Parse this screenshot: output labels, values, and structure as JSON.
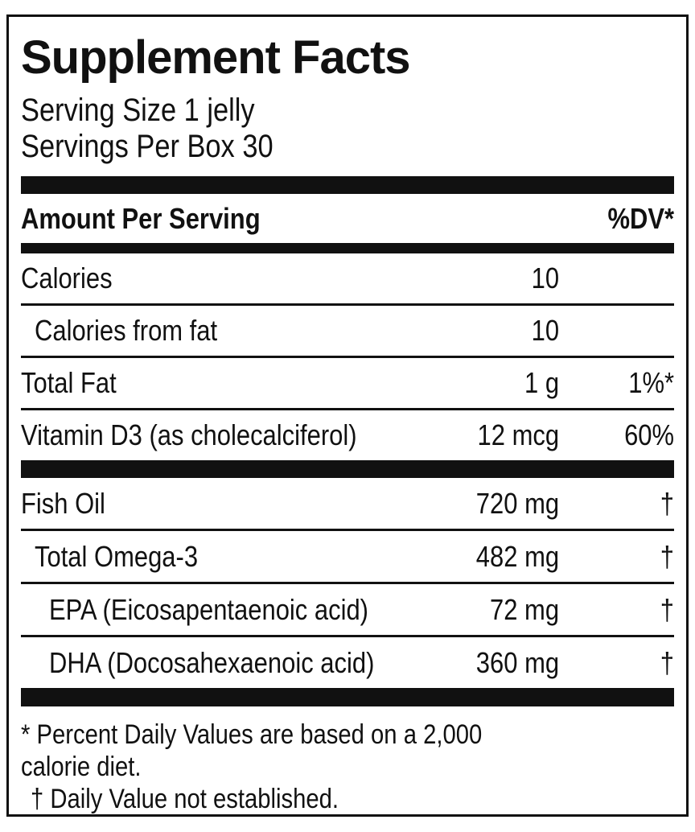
{
  "panel": {
    "title": "Supplement Facts",
    "serving": {
      "size": "Serving Size 1 jelly",
      "per_box": "Servings Per Box 30"
    },
    "columns": {
      "amount_header": "Amount Per Serving",
      "dv_header": "%DV*"
    },
    "sections": [
      {
        "rows": [
          {
            "name": "Calories",
            "amount": "10",
            "dv": ""
          },
          {
            "name": "Calories from fat",
            "amount": "10",
            "dv": ""
          },
          {
            "name": "Total Fat",
            "amount": "1 g",
            "dv": "1%*"
          },
          {
            "name": "Vitamin D3 (as cholecalciferol)",
            "amount": "12 mcg",
            "dv": "60%"
          }
        ]
      },
      {
        "rows": [
          {
            "name": "Fish Oil",
            "amount": "720 mg",
            "dv": "†"
          },
          {
            "name": "Total Omega-3",
            "amount": "482 mg",
            "dv": "†"
          },
          {
            "name": "EPA (Eicosapentaenoic acid)",
            "amount": "72 mg",
            "dv": "†"
          },
          {
            "name": "DHA (Docosahexaenoic acid)",
            "amount": "360 mg",
            "dv": "†"
          }
        ]
      }
    ],
    "footnote_lines": [
      "* Percent Daily Values are based on a 2,000",
      "calorie diet.",
      "† Daily Value not established."
    ],
    "colors": {
      "ink": "#111111",
      "background": "#ffffff"
    }
  }
}
